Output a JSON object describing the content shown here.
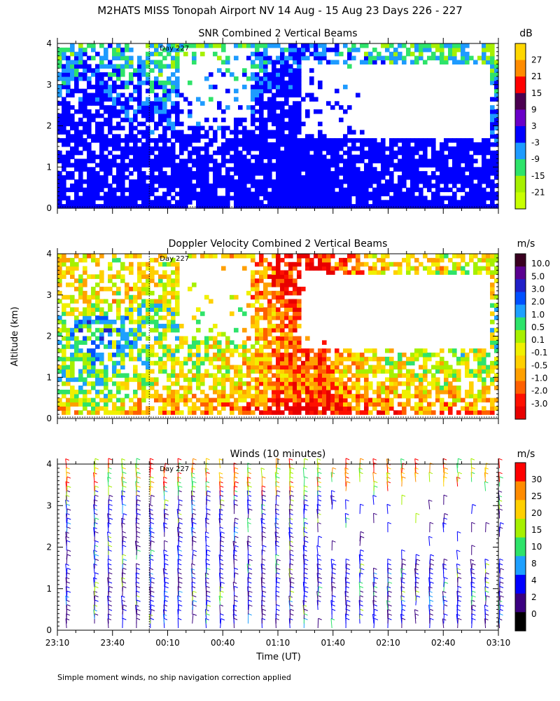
{
  "figure": {
    "title": "M2HATS MISS Tonopah Airport NV  14 Aug - 15 Aug 23 Days 226 - 227",
    "ylabel": "Altitude (km)",
    "xlabel": "Time (UT)",
    "footnote": "Simple moment winds, no ship navigation correction applied",
    "day_marker": "Day 227"
  },
  "chart_data": [
    {
      "type": "heatmap",
      "title": "SNR Combined 2 Vertical Beams",
      "unit": "dB",
      "x_ticks": [
        "23:10",
        "23:40",
        "00:10",
        "00:40",
        "01:10",
        "01:40",
        "02:10",
        "02:40",
        "03:10"
      ],
      "y_ticks": [
        "0",
        "1",
        "2",
        "3",
        "4"
      ],
      "ylim": [
        0,
        4
      ],
      "colorbar_ticks": [
        "27",
        "21",
        "15",
        "9",
        "3",
        "-3",
        "-9",
        "-15",
        "-21"
      ],
      "colorbar_colors": [
        "#ffd700",
        "#ff8c00",
        "#ff0000",
        "#4b0050",
        "#6a00c8",
        "#0000ff",
        "#1e9bff",
        "#2ee36a",
        "#a6f000",
        "#c8ff00"
      ],
      "day_boundary": "00:00"
    },
    {
      "type": "heatmap",
      "title": "Doppler Velocity Combined 2 Vertical Beams",
      "unit": "m/s",
      "x_ticks": [
        "23:10",
        "23:40",
        "00:10",
        "00:40",
        "01:10",
        "01:40",
        "02:10",
        "02:40",
        "03:10"
      ],
      "y_ticks": [
        "0",
        "1",
        "2",
        "3",
        "4"
      ],
      "ylim": [
        0,
        4
      ],
      "colorbar_ticks": [
        "10.0",
        "5.0",
        "3.0",
        "2.0",
        "1.0",
        "0.5",
        "0.1",
        "-0.1",
        "-0.5",
        "-1.0",
        "-2.0",
        "-3.0"
      ],
      "colorbar_colors": [
        "#3a0020",
        "#5a0090",
        "#2020c8",
        "#0050ff",
        "#1ea0ff",
        "#2ee36a",
        "#a6f000",
        "#f0f000",
        "#ffd000",
        "#ffa000",
        "#ff6000",
        "#ff1000",
        "#e80000"
      ],
      "day_boundary": "00:00"
    },
    {
      "type": "scatter",
      "title": "Winds (10 minutes)",
      "unit": "m/s",
      "x_ticks": [
        "23:10",
        "23:40",
        "00:10",
        "00:40",
        "01:10",
        "01:40",
        "02:10",
        "02:40",
        "03:10"
      ],
      "y_ticks": [
        "0",
        "1",
        "2",
        "3",
        "4"
      ],
      "ylim": [
        0,
        4
      ],
      "colorbar_ticks": [
        "30",
        "25",
        "20",
        "15",
        "10",
        "8",
        "4",
        "2",
        "0"
      ],
      "colorbar_colors": [
        "#ff0000",
        "#ff8c00",
        "#ffd000",
        "#a6f000",
        "#2ee36a",
        "#1ea0ff",
        "#0000ff",
        "#3a0080",
        "#000000"
      ],
      "day_boundary": "00:00"
    }
  ]
}
